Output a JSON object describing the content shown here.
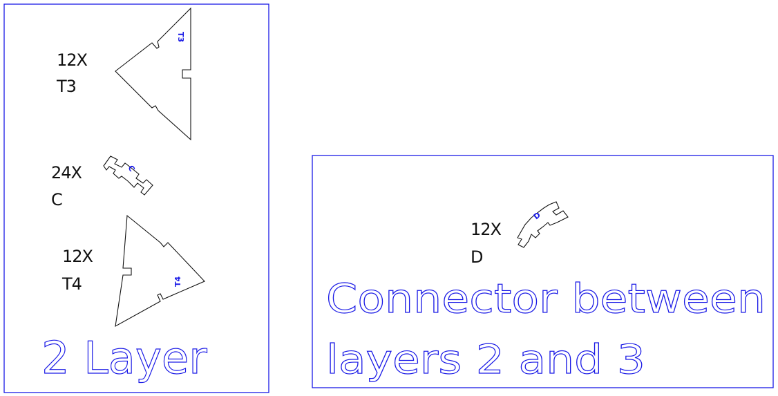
{
  "colors": {
    "frame": "#1a1ae6",
    "part_outline": "#111111",
    "part_id": "#1a1ae6",
    "title_outline": "#1a1ae6"
  },
  "panel_left": {
    "title": "2 Layer",
    "parts": [
      {
        "quantity": "12X",
        "id_line": "T3",
        "engraved": "T3"
      },
      {
        "quantity": "24X",
        "id_line": "C",
        "engraved": "C"
      },
      {
        "quantity": "12X",
        "id_line": "T4",
        "engraved": "T4"
      }
    ]
  },
  "panel_right": {
    "title_line1": "Connector between",
    "title_line2": "layers 2 and 3",
    "parts": [
      {
        "quantity": "12X",
        "id_line": "D",
        "engraved": "D"
      }
    ]
  }
}
